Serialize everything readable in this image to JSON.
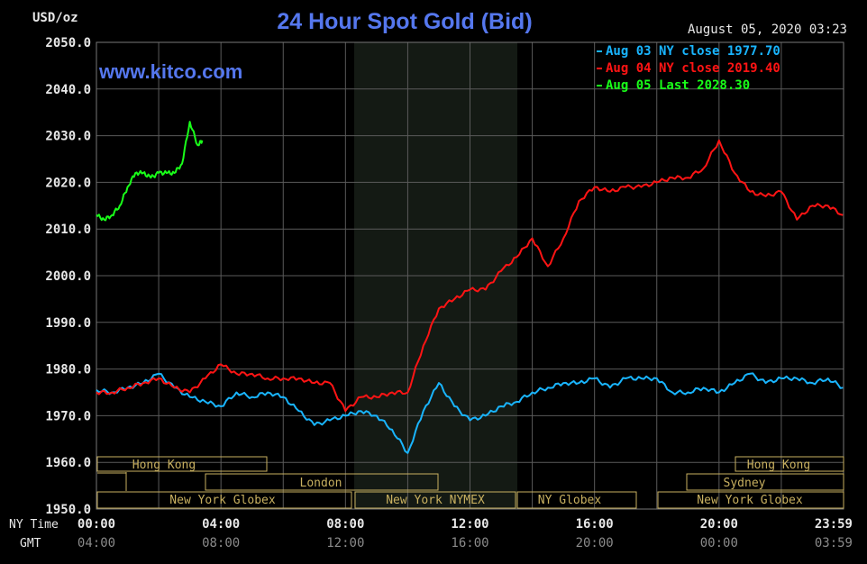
{
  "header": {
    "unit": "USD/oz",
    "title": "24 Hour Spot Gold (Bid)",
    "timestamp": "August 05, 2020 03:23",
    "site": "www.kitco.com"
  },
  "legend": [
    {
      "label": "Aug 03 NY close 1977.70",
      "color": "#19b5ff"
    },
    {
      "label": "Aug 04 NY close 2019.40",
      "color": "#ff1414"
    },
    {
      "label": "Aug 05 Last 2028.30",
      "color": "#19ff19"
    }
  ],
  "axis": {
    "y_ticks": [
      "2050.0",
      "2040.0",
      "2030.0",
      "2020.0",
      "2010.0",
      "2000.0",
      "1990.0",
      "1980.0",
      "1970.0",
      "1960.0",
      "1950.0"
    ],
    "ny_label": "NY Time",
    "gmt_label": "GMT",
    "ny_ticks": [
      "00:00",
      "04:00",
      "08:00",
      "12:00",
      "16:00",
      "20:00",
      "23:59"
    ],
    "gmt_ticks": [
      "04:00",
      "08:00",
      "12:00",
      "16:00",
      "20:00",
      "00:00",
      "03:59"
    ]
  },
  "sessions": {
    "hong_kong_1": "Hong Kong",
    "london": "London",
    "ny_globex_1": "New York Globex",
    "ny_nymex": "New York NYMEX",
    "ny_globex_2": "NY Globex",
    "hong_kong_2": "Hong Kong",
    "sydney": "Sydney",
    "ny_globex_3": "New York Globex"
  },
  "chart_data": {
    "type": "line",
    "title": "24 Hour Spot Gold (Bid)",
    "ylabel": "USD/oz",
    "xlabel": "NY Time",
    "ylim": [
      1950,
      2050
    ],
    "xlim": [
      0,
      24
    ],
    "grid": true,
    "legend_position": "top-right",
    "series": [
      {
        "name": "Aug 03 NY close 1977.70",
        "color": "#19b5ff",
        "x": [
          0,
          0.5,
          1,
          1.5,
          2,
          2.5,
          3,
          3.5,
          4,
          4.5,
          5,
          5.5,
          6,
          6.5,
          7,
          7.5,
          8,
          8.5,
          9,
          9.5,
          10,
          10.5,
          11,
          11.5,
          12,
          12.5,
          13,
          13.5,
          14,
          14.5,
          15,
          15.5,
          16,
          16.5,
          17,
          17.5,
          18,
          18.5,
          19,
          19.5,
          20,
          20.5,
          21,
          21.5,
          22,
          22.5,
          23,
          23.5,
          23.98
        ],
        "values": [
          1975.5,
          1975,
          1976,
          1977,
          1979,
          1976,
          1974,
          1973,
          1972,
          1975,
          1974,
          1975,
          1974,
          1971,
          1968,
          1969,
          1970,
          1971,
          1970,
          1967,
          1962,
          1971,
          1977,
          1972,
          1969,
          1970,
          1972,
          1973,
          1975,
          1976,
          1977,
          1977,
          1978,
          1976,
          1978,
          1978,
          1978,
          1975,
          1975,
          1976,
          1975,
          1977,
          1979,
          1977,
          1978,
          1978,
          1977,
          1978,
          1976
        ]
      },
      {
        "name": "Aug 04 NY close 2019.40",
        "color": "#ff1414",
        "x": [
          0,
          0.5,
          1,
          1.5,
          2,
          2.5,
          3,
          3.5,
          4,
          4.5,
          5,
          5.5,
          6,
          6.5,
          7,
          7.5,
          8,
          8.5,
          9,
          9.5,
          10,
          10.5,
          11,
          11.5,
          12,
          12.5,
          13,
          13.5,
          14,
          14.5,
          15,
          15.5,
          16,
          16.5,
          17,
          17.5,
          18,
          18.5,
          19,
          19.5,
          20,
          20.5,
          21,
          21.5,
          22,
          22.5,
          23,
          23.5,
          23.98
        ],
        "values": [
          1975,
          1975,
          1976,
          1977,
          1978,
          1976,
          1975,
          1978,
          1981,
          1979,
          1979,
          1978,
          1978,
          1978,
          1977,
          1977,
          1971,
          1974,
          1974,
          1975,
          1975,
          1985,
          1993,
          1995,
          1997,
          1997,
          2001,
          2004,
          2008,
          2002,
          2008,
          2016,
          2019,
          2018,
          2019,
          2019,
          2020,
          2021,
          2021,
          2023,
          2029,
          2022,
          2018,
          2017,
          2018,
          2012,
          2015,
          2015,
          2013
        ]
      },
      {
        "name": "Aug 05 Last 2028.30",
        "color": "#19ff19",
        "x": [
          0,
          0.25,
          0.5,
          0.75,
          1,
          1.25,
          1.5,
          1.75,
          2,
          2.25,
          2.5,
          2.75,
          3,
          3.25,
          3.4
        ],
        "values": [
          2013,
          2012,
          2013,
          2015,
          2019,
          2022,
          2022,
          2021,
          2022,
          2022,
          2022,
          2024,
          2033,
          2028,
          2029
        ]
      }
    ]
  }
}
